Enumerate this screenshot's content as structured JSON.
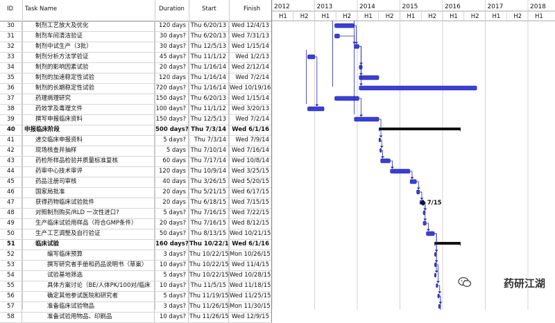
{
  "columns": {
    "id": "ID",
    "name": "Task Name",
    "duration": "Duration",
    "start": "Start",
    "finish": "Finish"
  },
  "timescale": {
    "years": [
      "2012",
      "2013",
      "2014",
      "2015",
      "2016",
      "2017",
      "2018"
    ],
    "halves": [
      "H1",
      "H2",
      "H1",
      "H2",
      "H1",
      "H2",
      "H1",
      "H2",
      "H1",
      "H2",
      "H1",
      "H2",
      "H1"
    ]
  },
  "tasks": [
    {
      "id": "30",
      "name": "制剂工艺放大及优化",
      "duration": "120 days",
      "start": "Thu 6/20/13",
      "finish": "Wed 12/4/13",
      "level": 1,
      "summary": false
    },
    {
      "id": "31",
      "name": "制剂车间清洁验证",
      "duration": "30 days?",
      "start": "Thu 6/20/13",
      "finish": "Wed 7/31/13",
      "level": 1,
      "summary": false
    },
    {
      "id": "32",
      "name": "制剂中试生产（3批）",
      "duration": "30 days?",
      "start": "Thu 12/5/13",
      "finish": "Wed 1/15/14",
      "level": 1,
      "summary": false
    },
    {
      "id": "33",
      "name": "制剂分析方法学验证",
      "duration": "45 days?",
      "start": "Thu 11/1/12",
      "finish": "Wed 1/2/13",
      "level": 1,
      "summary": false
    },
    {
      "id": "34",
      "name": "制剂的影响因素试验",
      "duration": "20 days?",
      "start": "Thu 1/16/14",
      "finish": "Wed 2/12/14",
      "level": 1,
      "summary": false
    },
    {
      "id": "35",
      "name": "制剂的加速稳定性试验",
      "duration": "120 days",
      "start": "Thu 1/16/14",
      "finish": "Wed 7/2/14",
      "level": 1,
      "summary": false
    },
    {
      "id": "36",
      "name": "制剂的长期稳定性试验",
      "duration": "720 days?",
      "start": "Thu 1/16/14",
      "finish": "Wed 10/19/16",
      "level": 1,
      "summary": false
    },
    {
      "id": "37",
      "name": "药理病理研究",
      "duration": "150 days?",
      "start": "Thu 6/20/13",
      "finish": "Wed 1/15/14",
      "level": 1,
      "summary": false
    },
    {
      "id": "38",
      "name": "药效学及毒理文件",
      "duration": "100 days?",
      "start": "Thu 11/1/12",
      "finish": "Wed 3/20/13",
      "level": 1,
      "summary": false
    },
    {
      "id": "39",
      "name": "撰写申报临床资料",
      "duration": "150 days?",
      "start": "Thu 12/5/13",
      "finish": "Wed 7/2/14",
      "level": 1,
      "summary": false
    },
    {
      "id": "40",
      "name": "申报临床阶段",
      "duration": "500 days?",
      "start": "Thu 7/3/14",
      "finish": "Wed 6/1/16",
      "level": 0,
      "summary": true
    },
    {
      "id": "41",
      "name": "递交临床申报资料",
      "duration": "5 days?",
      "start": "Thu 7/3/14",
      "finish": "Wed 7/9/14",
      "level": 1,
      "summary": false
    },
    {
      "id": "42",
      "name": "现场核查并抽样",
      "duration": "5 days",
      "start": "Thu 7/10/14",
      "finish": "Wed 7/16/14",
      "level": 1,
      "summary": false
    },
    {
      "id": "43",
      "name": "药检所样品检验并质量标准复核",
      "duration": "60 days",
      "start": "Thu 7/17/14",
      "finish": "Wed 10/8/14",
      "level": 1,
      "summary": false
    },
    {
      "id": "44",
      "name": "药审中心技术审评",
      "duration": "120 days",
      "start": "Thu 10/9/14",
      "finish": "Wed 3/25/15",
      "level": 1,
      "summary": false
    },
    {
      "id": "45",
      "name": "药品注册司审核",
      "duration": "40 days",
      "start": "Thu 3/26/15",
      "finish": "Wed 5/20/15",
      "level": 1,
      "summary": false
    },
    {
      "id": "46",
      "name": "国家局批准",
      "duration": "20 days",
      "start": "Thu 5/21/15",
      "finish": "Wed 6/17/15",
      "level": 1,
      "summary": false
    },
    {
      "id": "47",
      "name": "获得药物临床试验批件",
      "duration": "20 days",
      "start": "Thu 6/18/15",
      "finish": "Wed 7/15/15",
      "level": 1,
      "summary": false
    },
    {
      "id": "48",
      "name": "对照制剂购买/RLD 一次性进口?",
      "duration": "5 days?",
      "start": "Thu 7/16/15",
      "finish": "Wed 7/22/15",
      "level": 1,
      "summary": false
    },
    {
      "id": "49",
      "name": "生产临床试验用样品（符合GMP条件）",
      "duration": "20 days?",
      "start": "Thu 7/16/15",
      "finish": "Wed 8/12/15",
      "level": 1,
      "summary": false
    },
    {
      "id": "50",
      "name": "生产工艺调整及自行验证",
      "duration": "50 days?",
      "start": "Thu 8/13/15",
      "finish": "Wed 10/21/15",
      "level": 1,
      "summary": false
    },
    {
      "id": "51",
      "name": "临床试验",
      "duration": "160 days?",
      "start": "Thu 10/22/15",
      "finish": "Wed 6/1/16",
      "level": 1,
      "summary": true
    },
    {
      "id": "52",
      "name": "编写临床预算",
      "duration": "3 days?",
      "start": "Thu 10/22/15",
      "finish": "Mon 10/26/15",
      "level": 2,
      "summary": false
    },
    {
      "id": "53",
      "name": "撰写研究者手册和药品说明书（草案）",
      "duration": "10 days?",
      "start": "Thu 10/22/15",
      "finish": "Wed 11/4/15",
      "level": 2,
      "summary": false
    },
    {
      "id": "54",
      "name": "试验基地筛选",
      "duration": "5 days?",
      "start": "Thu 10/22/15",
      "finish": "Wed 10/28/15",
      "level": 2,
      "summary": false
    },
    {
      "id": "55",
      "name": "具体方案讨论（BE/人体PK/100对/临床",
      "duration": "10 days?",
      "start": "Thu 11/5/15",
      "finish": "Wed 11/18/15",
      "level": 2,
      "summary": false
    },
    {
      "id": "56",
      "name": "确定其他参试医院和研究者",
      "duration": "5 days?",
      "start": "Thu 11/19/15",
      "finish": "Wed 11/25/15",
      "level": 2,
      "summary": false
    },
    {
      "id": "57",
      "name": "准备临床试验物品",
      "duration": "3 days?",
      "start": "Thu 11/26/15",
      "finish": "Mon 11/30/15",
      "level": 2,
      "summary": false
    },
    {
      "id": "58",
      "name": "准备试验用物品、印刷品",
      "duration": "10 days?",
      "start": "Thu 11/26/15",
      "finish": "Wed 12/9/15",
      "level": 2,
      "summary": false
    }
  ],
  "milestone_label": "7/15",
  "watermark": "药研江湖",
  "colors": {
    "bar": "#3b3fd6",
    "summary": "#111111",
    "link": "#2226a8"
  },
  "icons": {
    "watermark": "wechat-icon"
  }
}
